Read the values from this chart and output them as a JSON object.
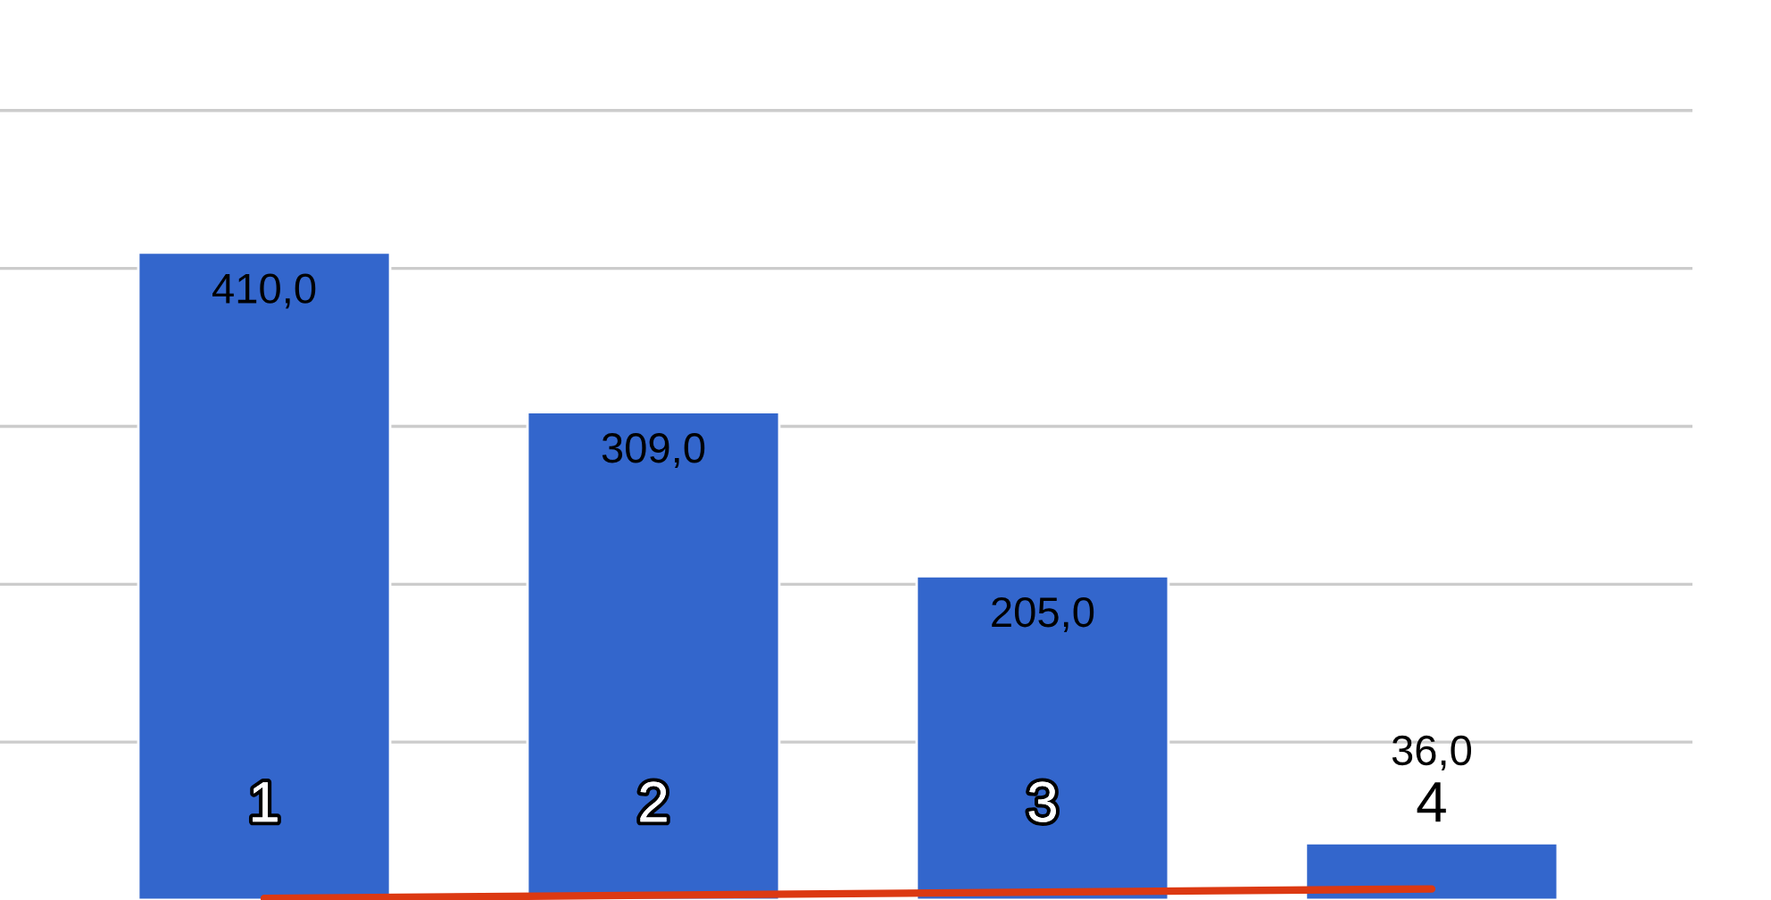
{
  "chart_data": {
    "type": "bar",
    "categories": [
      "1",
      "2",
      "3",
      "4"
    ],
    "series": [
      {
        "color": "#3366cc",
        "values": [
          410,
          309,
          205,
          36
        ],
        "value_labels": [
          "410,0",
          "309,0",
          "205,0",
          "36,0"
        ]
      },
      {
        "type": "line",
        "color": "#dc3912",
        "values": [
          1,
          3,
          5,
          7
        ]
      }
    ],
    "yticks": [
      {
        "value": 100,
        "label": null
      },
      {
        "value": 200,
        "label": null
      },
      {
        "value": 300,
        "label": null
      },
      {
        "value": 400,
        "label": null
      },
      {
        "value": 500,
        "label": null
      }
    ],
    "grid": "y",
    "legend": false
  }
}
